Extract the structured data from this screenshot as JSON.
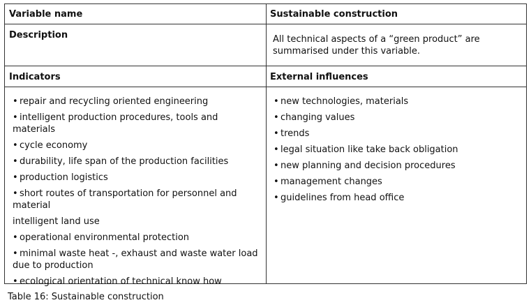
{
  "table": {
    "header_left": "Variable name",
    "header_right": "Sustainable construction",
    "description_label": "Description",
    "description_text": "All technical aspects of a “green product” are summarised under this variable.",
    "indicators_label": "Indicators",
    "external_label": "External influences",
    "indicators": [
      {
        "bullet": true,
        "text": "repair and recycling oriented engineering"
      },
      {
        "bullet": true,
        "text": "intelligent production procedures, tools and materials"
      },
      {
        "bullet": true,
        "text": "cycle economy"
      },
      {
        "bullet": true,
        "text": "durability, life span of the production facilities"
      },
      {
        "bullet": true,
        "text": "production logistics"
      },
      {
        "bullet": true,
        "text": "short routes of transportation for personnel and material"
      },
      {
        "bullet": false,
        "text": "intelligent land use"
      },
      {
        "bullet": true,
        "text": "operational environmental protection"
      },
      {
        "bullet": true,
        "text": "minimal waste heat -, exhaust and waste water load due to production"
      },
      {
        "bullet": true,
        "text": "ecological orientation of technical know how"
      }
    ],
    "external": [
      {
        "bullet": true,
        "text": "new technologies, materials"
      },
      {
        "bullet": true,
        "text": "changing values"
      },
      {
        "bullet": true,
        "text": "trends"
      },
      {
        "bullet": true,
        "text": "legal situation like take back obligation"
      },
      {
        "bullet": true,
        "text": "new planning and decision procedures"
      },
      {
        "bullet": true,
        "text": "management changes"
      },
      {
        "bullet": true,
        "text": "guidelines from head office"
      }
    ]
  },
  "caption": "Table 16: Sustainable construction"
}
